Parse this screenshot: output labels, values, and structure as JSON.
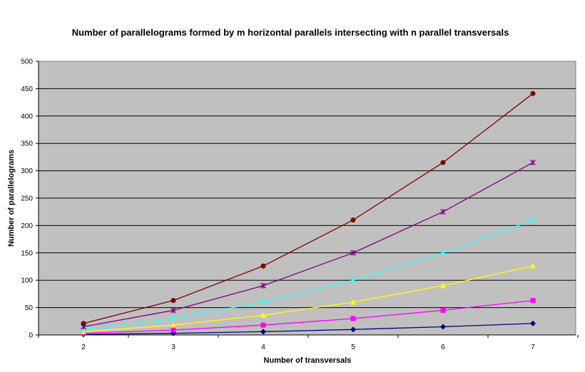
{
  "chart_data": {
    "type": "line",
    "title": "Number of parallelograms formed by m horizontal parallels intersecting with n parallel transversals",
    "xlabel": "Number of transversals",
    "ylabel": "Number of parallelograms",
    "x": [
      2,
      3,
      4,
      5,
      6,
      7
    ],
    "ylim": [
      0,
      500
    ],
    "yticks": [
      0,
      50,
      100,
      150,
      200,
      250,
      300,
      350,
      400,
      450,
      500
    ],
    "grid": true,
    "legend": "none",
    "plot_background": "#C0C0C0",
    "series": [
      {
        "color": "#000080",
        "marker": "diamond",
        "values": [
          1,
          3,
          6,
          10,
          15,
          21
        ]
      },
      {
        "color": "#FF00FF",
        "marker": "square",
        "values": [
          3,
          9,
          18,
          30,
          45,
          63
        ]
      },
      {
        "color": "#FFFF00",
        "marker": "triangle",
        "values": [
          6,
          18,
          36,
          60,
          90,
          126
        ]
      },
      {
        "color": "#33FFFF",
        "marker": "x",
        "values": [
          10,
          30,
          60,
          100,
          150,
          210
        ]
      },
      {
        "color": "#800080",
        "marker": "star",
        "values": [
          15,
          45,
          90,
          150,
          225,
          315
        ]
      },
      {
        "color": "#800000",
        "marker": "circle",
        "values": [
          21,
          63,
          126,
          210,
          315,
          441
        ]
      }
    ]
  }
}
